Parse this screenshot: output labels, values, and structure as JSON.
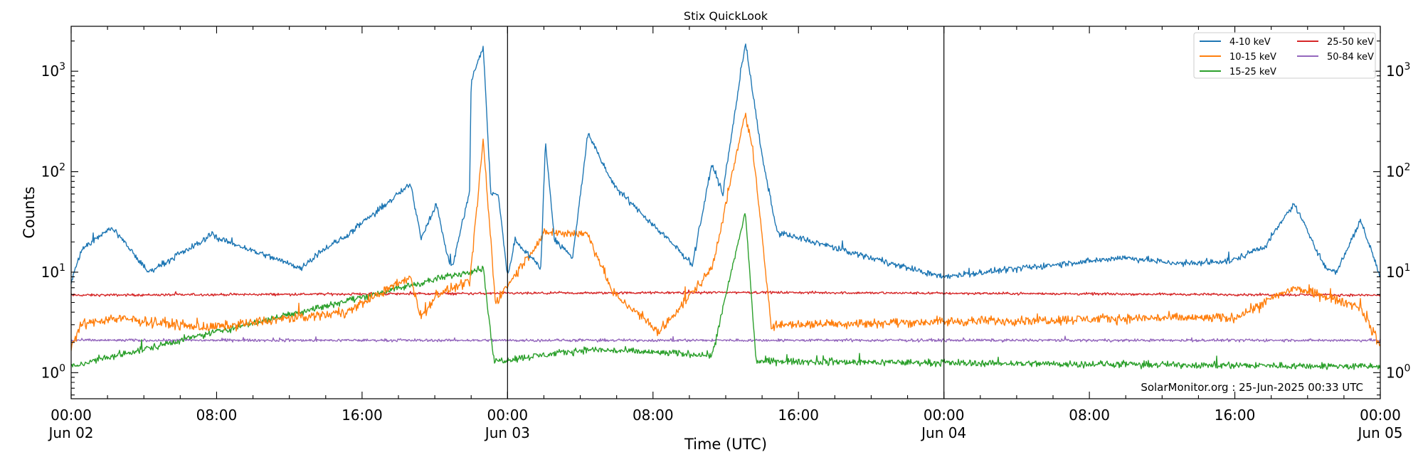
{
  "chart_data": {
    "type": "line",
    "title": "Stix QuickLook",
    "xlabel": "Time (UTC)",
    "ylabel": "Counts",
    "y_scale": "log",
    "ylim": [
      0.55,
      2800
    ],
    "xlim": [
      "2025-06-02T00:00",
      "2025-06-05T00:00"
    ],
    "grid": false,
    "legend_position": "top-right",
    "x_ticks": [
      {
        "time": "2025-06-02T00:00",
        "label": "00:00",
        "date": "Jun 02"
      },
      {
        "time": "2025-06-02T08:00",
        "label": "08:00",
        "date": ""
      },
      {
        "time": "2025-06-02T16:00",
        "label": "16:00",
        "date": ""
      },
      {
        "time": "2025-06-03T00:00",
        "label": "00:00",
        "date": "Jun 03"
      },
      {
        "time": "2025-06-03T08:00",
        "label": "08:00",
        "date": ""
      },
      {
        "time": "2025-06-03T16:00",
        "label": "16:00",
        "date": ""
      },
      {
        "time": "2025-06-04T00:00",
        "label": "00:00",
        "date": "Jun 04"
      },
      {
        "time": "2025-06-04T08:00",
        "label": "08:00",
        "date": ""
      },
      {
        "time": "2025-06-04T16:00",
        "label": "16:00",
        "date": ""
      },
      {
        "time": "2025-06-05T00:00",
        "label": "00:00",
        "date": "Jun 05"
      }
    ],
    "y_ticks": [
      {
        "value": 1,
        "label": "10^0"
      },
      {
        "value": 10,
        "label": "10^1"
      },
      {
        "value": 100,
        "label": "10^2"
      },
      {
        "value": 1000,
        "label": "10^3"
      }
    ],
    "day_separators": [
      "2025-06-03T00:00",
      "2025-06-04T00:00"
    ],
    "annotation": "SolarMonitor.org : 25-Jun-2025 00:33 UTC",
    "series": [
      {
        "name": "4-10 keV",
        "color": "#1f77b4",
        "baseline": 8,
        "points": [
          [
            "2025-06-02T00:00",
            8
          ],
          [
            "2025-06-02T00:35",
            17
          ],
          [
            "2025-06-02T02:15",
            28
          ],
          [
            "2025-06-02T04:15",
            10
          ],
          [
            "2025-06-02T07:20",
            21
          ],
          [
            "2025-06-02T07:45",
            25
          ],
          [
            "2025-06-02T08:00",
            22
          ],
          [
            "2025-06-02T12:40",
            11
          ],
          [
            "2025-06-02T13:40",
            16
          ],
          [
            "2025-06-02T15:00",
            22
          ],
          [
            "2025-06-02T18:40",
            75
          ],
          [
            "2025-06-02T19:15",
            22
          ],
          [
            "2025-06-02T20:05",
            48
          ],
          [
            "2025-06-02T20:45",
            13
          ],
          [
            "2025-06-02T21:00",
            12
          ],
          [
            "2025-06-02T21:55",
            65
          ],
          [
            "2025-06-02T22:00",
            800
          ],
          [
            "2025-06-02T22:40",
            1750
          ],
          [
            "2025-06-02T23:05",
            60
          ],
          [
            "2025-06-02T23:30",
            58
          ],
          [
            "2025-06-03T00:00",
            9
          ],
          [
            "2025-06-03T00:25",
            21
          ],
          [
            "2025-06-03T01:50",
            11
          ],
          [
            "2025-06-03T02:05",
            200
          ],
          [
            "2025-06-03T02:35",
            21
          ],
          [
            "2025-06-03T03:35",
            14
          ],
          [
            "2025-06-03T04:25",
            240
          ],
          [
            "2025-06-03T05:35",
            90
          ],
          [
            "2025-06-03T06:05",
            65
          ],
          [
            "2025-06-03T08:20",
            26
          ],
          [
            "2025-06-03T10:10",
            12
          ],
          [
            "2025-06-03T11:15",
            120
          ],
          [
            "2025-06-03T11:50",
            60
          ],
          [
            "2025-06-03T13:05",
            1950
          ],
          [
            "2025-06-03T14:00",
            140
          ],
          [
            "2025-06-03T14:50",
            25
          ],
          [
            "2025-06-03T23:50",
            9
          ],
          [
            "2025-06-04T09:50",
            14
          ],
          [
            "2025-06-04T11:35",
            13
          ],
          [
            "2025-06-04T13:10",
            12
          ],
          [
            "2025-06-04T15:50",
            13
          ],
          [
            "2025-06-04T17:15",
            17
          ],
          [
            "2025-06-04T17:40",
            18
          ],
          [
            "2025-06-04T19:15",
            48
          ],
          [
            "2025-06-04T21:00",
            11
          ],
          [
            "2025-06-04T21:35",
            10
          ],
          [
            "2025-06-04T22:55",
            33
          ],
          [
            "2025-06-05T00:00",
            9
          ]
        ]
      },
      {
        "name": "10-15 keV",
        "color": "#ff7f0e",
        "baseline": 1.8,
        "points": [
          [
            "2025-06-02T00:00",
            1.8
          ],
          [
            "2025-06-02T00:35",
            3
          ],
          [
            "2025-06-02T02:15",
            3.5
          ],
          [
            "2025-06-02T07:30",
            2.8
          ],
          [
            "2025-06-02T15:05",
            4
          ],
          [
            "2025-06-02T18:40",
            9
          ],
          [
            "2025-06-02T19:15",
            3.5
          ],
          [
            "2025-06-02T20:05",
            6
          ],
          [
            "2025-06-02T21:55",
            8
          ],
          [
            "2025-06-02T22:40",
            200
          ],
          [
            "2025-06-02T23:20",
            5
          ],
          [
            "2025-06-03T02:05",
            25
          ],
          [
            "2025-06-03T04:25",
            24
          ],
          [
            "2025-06-03T05:40",
            7
          ],
          [
            "2025-06-03T05:55",
            6
          ],
          [
            "2025-06-03T08:20",
            2.5
          ],
          [
            "2025-06-03T11:15",
            11
          ],
          [
            "2025-06-03T13:05",
            380
          ],
          [
            "2025-06-03T13:30",
            160
          ],
          [
            "2025-06-03T14:30",
            3
          ],
          [
            "2025-06-04T11:30",
            3.5
          ],
          [
            "2025-06-04T15:55",
            3.5
          ],
          [
            "2025-06-04T19:15",
            7
          ],
          [
            "2025-06-04T22:55",
            4.5
          ],
          [
            "2025-06-05T00:00",
            1.8
          ]
        ]
      },
      {
        "name": "15-25 keV",
        "color": "#2ca02c",
        "baseline": 1.15,
        "points": [
          [
            "2025-06-02T00:00",
            1.15
          ],
          [
            "2025-06-02T22:40",
            11
          ],
          [
            "2025-06-02T23:15",
            1.3
          ],
          [
            "2025-06-03T04:25",
            1.7
          ],
          [
            "2025-06-03T11:15",
            1.5
          ],
          [
            "2025-06-03T13:05",
            40
          ],
          [
            "2025-06-03T13:40",
            1.3
          ],
          [
            "2025-06-05T00:00",
            1.15
          ]
        ]
      },
      {
        "name": "25-50 keV",
        "color": "#d62728",
        "baseline": 5.9,
        "points": [
          [
            "2025-06-02T00:00",
            5.9
          ],
          [
            "2025-06-03T13:05",
            6.3
          ],
          [
            "2025-06-05T00:00",
            5.9
          ]
        ]
      },
      {
        "name": "50-84 keV",
        "color": "#9467bd",
        "baseline": 2.1,
        "points": [
          [
            "2025-06-02T00:00",
            2.1
          ],
          [
            "2025-06-05T00:00",
            2.1
          ]
        ]
      }
    ]
  }
}
